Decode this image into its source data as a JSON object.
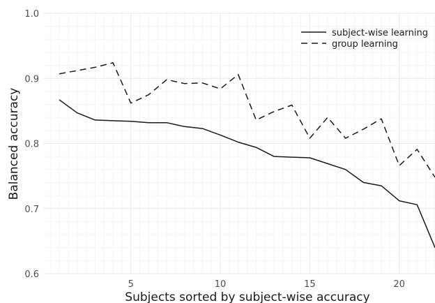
{
  "chart_data": {
    "type": "line",
    "title": "",
    "xlabel": "Subjects sorted by subject-wise accuracy",
    "ylabel": "Balanced accuracy",
    "xlim": [
      0.1,
      22
    ],
    "ylim": [
      0.6,
      1.0
    ],
    "xticks": [
      5,
      10,
      15,
      20
    ],
    "yticks": [
      0.6,
      0.7,
      0.8,
      0.9,
      1.0
    ],
    "ytick_labels": [
      "0.6",
      "0.7",
      "0.8",
      "0.9",
      "1.0"
    ],
    "grid": true,
    "legend_position": "top-right",
    "x": [
      1,
      2,
      3,
      4,
      5,
      6,
      7,
      8,
      9,
      10,
      11,
      12,
      13,
      14,
      15,
      16,
      17,
      18,
      19,
      20,
      21,
      22
    ],
    "series": [
      {
        "name": "subject-wise learning",
        "dash": "solid",
        "color": "#1a1a1a",
        "values": [
          0.867,
          0.847,
          0.836,
          0.835,
          0.834,
          0.832,
          0.832,
          0.826,
          0.823,
          0.813,
          0.802,
          0.794,
          0.78,
          0.779,
          0.778,
          0.769,
          0.76,
          0.74,
          0.735,
          0.712,
          0.706,
          0.64
        ]
      },
      {
        "name": "group learning",
        "dash": "dashed",
        "color": "#1a1a1a",
        "values": [
          0.907,
          0.912,
          0.917,
          0.924,
          0.862,
          0.875,
          0.898,
          0.892,
          0.893,
          0.884,
          0.906,
          0.836,
          0.849,
          0.859,
          0.808,
          0.84,
          0.808,
          0.822,
          0.838,
          0.766,
          0.791,
          0.748
        ]
      }
    ]
  }
}
